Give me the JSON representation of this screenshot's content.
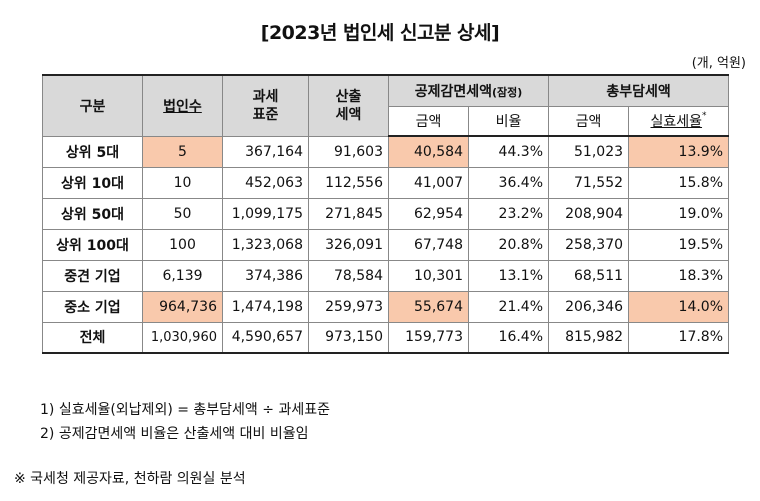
{
  "title": "[2023년 법인세 신고분 상세]",
  "unit": "(개, 억원)",
  "header": {
    "category": "구분",
    "corp_count": "법인수",
    "tax_base_l1": "과세",
    "tax_base_l2": "표준",
    "computed_tax_l1": "산출",
    "computed_tax_l2": "세액",
    "deduction": "공제감면세액",
    "deduction_note": "(잠정)",
    "total_burden": "총부담세액",
    "amount": "금액",
    "ratio": "비율",
    "amount2": "금액",
    "effective_rate": "실효세율",
    "effective_rate_mark": "*"
  },
  "rows": [
    {
      "label": "상위 5대",
      "count": "5",
      "tax_base": "367,164",
      "computed": "91,603",
      "ded_amount": "40,584",
      "ded_ratio": "44.3%",
      "burden": "51,023",
      "eff_rate": "13.9%"
    },
    {
      "label": "상위 10대",
      "count": "10",
      "tax_base": "452,063",
      "computed": "112,556",
      "ded_amount": "41,007",
      "ded_ratio": "36.4%",
      "burden": "71,552",
      "eff_rate": "15.8%"
    },
    {
      "label": "상위 50대",
      "count": "50",
      "tax_base": "1,099,175",
      "computed": "271,845",
      "ded_amount": "62,954",
      "ded_ratio": "23.2%",
      "burden": "208,904",
      "eff_rate": "19.0%"
    },
    {
      "label": "상위 100대",
      "count": "100",
      "tax_base": "1,323,068",
      "computed": "326,091",
      "ded_amount": "67,748",
      "ded_ratio": "20.8%",
      "burden": "258,370",
      "eff_rate": "19.5%"
    },
    {
      "label": "중견 기업",
      "count": "6,139",
      "tax_base": "374,386",
      "computed": "78,584",
      "ded_amount": "10,301",
      "ded_ratio": "13.1%",
      "burden": "68,511",
      "eff_rate": "18.3%"
    },
    {
      "label": "중소 기업",
      "count": "964,736",
      "tax_base": "1,474,198",
      "computed": "259,973",
      "ded_amount": "55,674",
      "ded_ratio": "21.4%",
      "burden": "206,346",
      "eff_rate": "14.0%"
    },
    {
      "label": "전체",
      "count": "1,030,960",
      "tax_base": "4,590,657",
      "computed": "973,150",
      "ded_amount": "159,773",
      "ded_ratio": "16.4%",
      "burden": "815,982",
      "eff_rate": "17.8%"
    }
  ],
  "highlight_color": "#f9c9ac",
  "header_color": "#d9d9d9",
  "notes": [
    "1) 실효세율(외납제외) = 총부담세액 ÷ 과세표준",
    "2) 공제감면세액 비율은 산출세액 대비 비율임"
  ],
  "source": "※ 국세청 제공자료, 천하람 의원실 분석"
}
